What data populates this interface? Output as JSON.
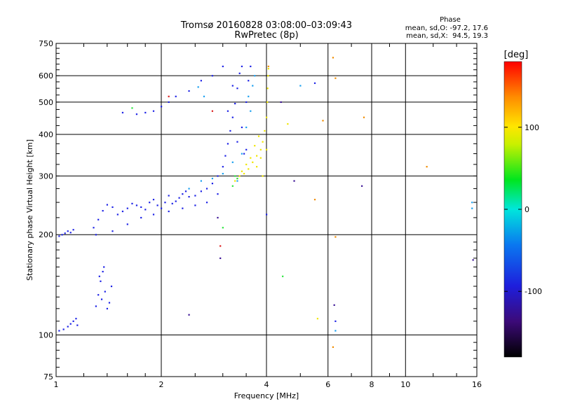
{
  "chart_data": {
    "type": "scatter",
    "title": "Tromsø 20160828 03:08:00–03:09:43",
    "subtitle": "RwPretec (8p)",
    "xlabel": "Frequency [MHz]",
    "ylabel": "Stationary phase Virtual Height [km]",
    "x_scale": "log2",
    "y_scale": "log",
    "xlim": [
      1,
      16
    ],
    "ylim": [
      75,
      750
    ],
    "xticks": [
      {
        "v": 1,
        "label": "1"
      },
      {
        "v": 2,
        "label": "2"
      },
      {
        "v": 4,
        "label": "4"
      },
      {
        "v": 6,
        "label": "6"
      },
      {
        "v": 8,
        "label": "8"
      },
      {
        "v": 10,
        "label": "10"
      },
      {
        "v": 16,
        "label": "16"
      }
    ],
    "yticks": [
      {
        "v": 75,
        "label": "75"
      },
      {
        "v": 100,
        "label": "100"
      },
      {
        "v": 200,
        "label": "200"
      },
      {
        "v": 300,
        "label": "300"
      },
      {
        "v": 400,
        "label": "400"
      },
      {
        "v": 500,
        "label": "500"
      },
      {
        "v": 600,
        "label": "600"
      },
      {
        "v": 750,
        "label": "750"
      }
    ],
    "grid": true,
    "phase_box": {
      "title": "Phase",
      "line_o": "mean, sd,O: -97.2, 17.6",
      "line_x": "mean, sd,X:  94.5, 19.3"
    },
    "colorbar": {
      "label": "[deg]",
      "range": [
        -180,
        180
      ],
      "ticks": [
        {
          "v": -100,
          "label": "-100"
        },
        {
          "v": 0,
          "label": "0"
        },
        {
          "v": 100,
          "label": "100"
        }
      ]
    },
    "series": [
      {
        "color": "#1e23e6",
        "points": [
          [
            1.02,
            198
          ],
          [
            1.04,
            200
          ],
          [
            1.06,
            202
          ],
          [
            1.08,
            205
          ],
          [
            1.1,
            203
          ],
          [
            1.12,
            207
          ],
          [
            1.02,
            103
          ],
          [
            1.05,
            104
          ],
          [
            1.08,
            106
          ],
          [
            1.1,
            108
          ],
          [
            1.12,
            110
          ],
          [
            1.14,
            112
          ],
          [
            1.15,
            107
          ],
          [
            1.3,
            122
          ],
          [
            1.32,
            132
          ],
          [
            1.34,
            145
          ],
          [
            1.36,
            155
          ],
          [
            1.38,
            135
          ],
          [
            1.4,
            120
          ],
          [
            1.42,
            125
          ],
          [
            1.44,
            140
          ],
          [
            1.33,
            150
          ],
          [
            1.37,
            160
          ],
          [
            1.35,
            128
          ],
          [
            1.28,
            210
          ],
          [
            1.32,
            222
          ],
          [
            1.36,
            236
          ],
          [
            1.4,
            246
          ],
          [
            1.45,
            242
          ],
          [
            1.5,
            230
          ],
          [
            1.55,
            235
          ],
          [
            1.6,
            240
          ],
          [
            1.65,
            248
          ],
          [
            1.7,
            245
          ],
          [
            1.75,
            242
          ],
          [
            1.8,
            238
          ],
          [
            1.85,
            250
          ],
          [
            1.9,
            255
          ],
          [
            1.95,
            245
          ],
          [
            2.0,
            240
          ],
          [
            2.05,
            250
          ],
          [
            2.1,
            262
          ],
          [
            2.15,
            248
          ],
          [
            2.2,
            252
          ],
          [
            2.25,
            258
          ],
          [
            2.3,
            265
          ],
          [
            2.35,
            270
          ],
          [
            2.4,
            260
          ],
          [
            2.5,
            262
          ],
          [
            2.6,
            270
          ],
          [
            2.7,
            275
          ],
          [
            2.8,
            285
          ],
          [
            2.9,
            300
          ],
          [
            3.0,
            320
          ],
          [
            3.05,
            345
          ],
          [
            3.1,
            375
          ],
          [
            3.15,
            410
          ],
          [
            3.2,
            450
          ],
          [
            3.25,
            495
          ],
          [
            3.3,
            550
          ],
          [
            3.35,
            610
          ],
          [
            3.4,
            640
          ],
          [
            3.2,
            560
          ],
          [
            3.1,
            470
          ],
          [
            3.3,
            380
          ],
          [
            3.4,
            420
          ],
          [
            3.5,
            500
          ],
          [
            3.55,
            580
          ],
          [
            3.6,
            640
          ],
          [
            3.45,
            350
          ],
          [
            3.5,
            360
          ],
          [
            1.3,
            200
          ],
          [
            1.45,
            205
          ],
          [
            1.6,
            215
          ],
          [
            1.75,
            225
          ],
          [
            1.9,
            230
          ],
          [
            2.1,
            235
          ],
          [
            2.3,
            240
          ],
          [
            2.5,
            245
          ],
          [
            2.7,
            250
          ],
          [
            2.9,
            265
          ],
          [
            1.7,
            460
          ],
          [
            1.8,
            465
          ],
          [
            1.9,
            470
          ],
          [
            2.0,
            485
          ],
          [
            2.1,
            500
          ],
          [
            2.2,
            520
          ],
          [
            2.4,
            540
          ],
          [
            2.6,
            580
          ],
          [
            2.8,
            600
          ],
          [
            3.0,
            640
          ],
          [
            1.55,
            465
          ],
          [
            4.0,
            230
          ],
          [
            5.5,
            570
          ],
          [
            6.3,
            110
          ]
        ]
      },
      {
        "color": "#1aa0f0",
        "points": [
          [
            2.4,
            275
          ],
          [
            2.6,
            290
          ],
          [
            2.8,
            295
          ],
          [
            3.0,
            305
          ],
          [
            3.2,
            330
          ],
          [
            3.4,
            350
          ],
          [
            3.5,
            420
          ],
          [
            3.6,
            470
          ],
          [
            3.55,
            520
          ],
          [
            3.65,
            560
          ],
          [
            3.7,
            600
          ],
          [
            2.55,
            555
          ],
          [
            2.65,
            520
          ],
          [
            5.0,
            560
          ],
          [
            6.3,
            103
          ],
          [
            15.5,
            240
          ],
          [
            15.5,
            250
          ],
          [
            3.3,
            290
          ]
        ]
      },
      {
        "color": "#f0e600",
        "points": [
          [
            3.25,
            290
          ],
          [
            3.35,
            300
          ],
          [
            3.45,
            305
          ],
          [
            3.55,
            315
          ],
          [
            3.65,
            330
          ],
          [
            3.75,
            345
          ],
          [
            3.85,
            360
          ],
          [
            3.9,
            380
          ],
          [
            3.95,
            410
          ],
          [
            4.0,
            450
          ],
          [
            4.02,
            500
          ],
          [
            4.03,
            550
          ],
          [
            4.04,
            600
          ],
          [
            4.05,
            630
          ],
          [
            3.7,
            370
          ],
          [
            3.8,
            395
          ],
          [
            3.6,
            340
          ],
          [
            3.5,
            325
          ],
          [
            3.4,
            310
          ],
          [
            3.3,
            295
          ],
          [
            3.75,
            320
          ],
          [
            3.85,
            340
          ],
          [
            3.9,
            300
          ],
          [
            4.0,
            360
          ],
          [
            5.6,
            112
          ],
          [
            4.6,
            430
          ]
        ]
      },
      {
        "color": "#f08c00",
        "points": [
          [
            4.05,
            640
          ],
          [
            6.2,
            680
          ],
          [
            6.3,
            197
          ],
          [
            6.2,
            92
          ],
          [
            7.6,
            450
          ],
          [
            11.5,
            320
          ],
          [
            5.5,
            255
          ],
          [
            6.3,
            590
          ],
          [
            5.8,
            440
          ]
        ]
      },
      {
        "color": "#2ae63c",
        "points": [
          [
            3.3,
            295
          ],
          [
            3.2,
            280
          ],
          [
            3.25,
            300
          ],
          [
            4.45,
            150
          ],
          [
            1.65,
            480
          ],
          [
            3.0,
            210
          ]
        ]
      },
      {
        "color": "#dc1e1e",
        "points": [
          [
            2.1,
            520
          ],
          [
            2.8,
            470
          ],
          [
            2.95,
            185
          ]
        ]
      },
      {
        "color": "#3c1496",
        "points": [
          [
            2.95,
            170
          ],
          [
            2.4,
            115
          ],
          [
            15.6,
            168
          ],
          [
            7.5,
            280
          ],
          [
            6.25,
            123
          ],
          [
            4.4,
            500
          ],
          [
            4.8,
            290
          ],
          [
            2.9,
            225
          ]
        ]
      }
    ]
  }
}
